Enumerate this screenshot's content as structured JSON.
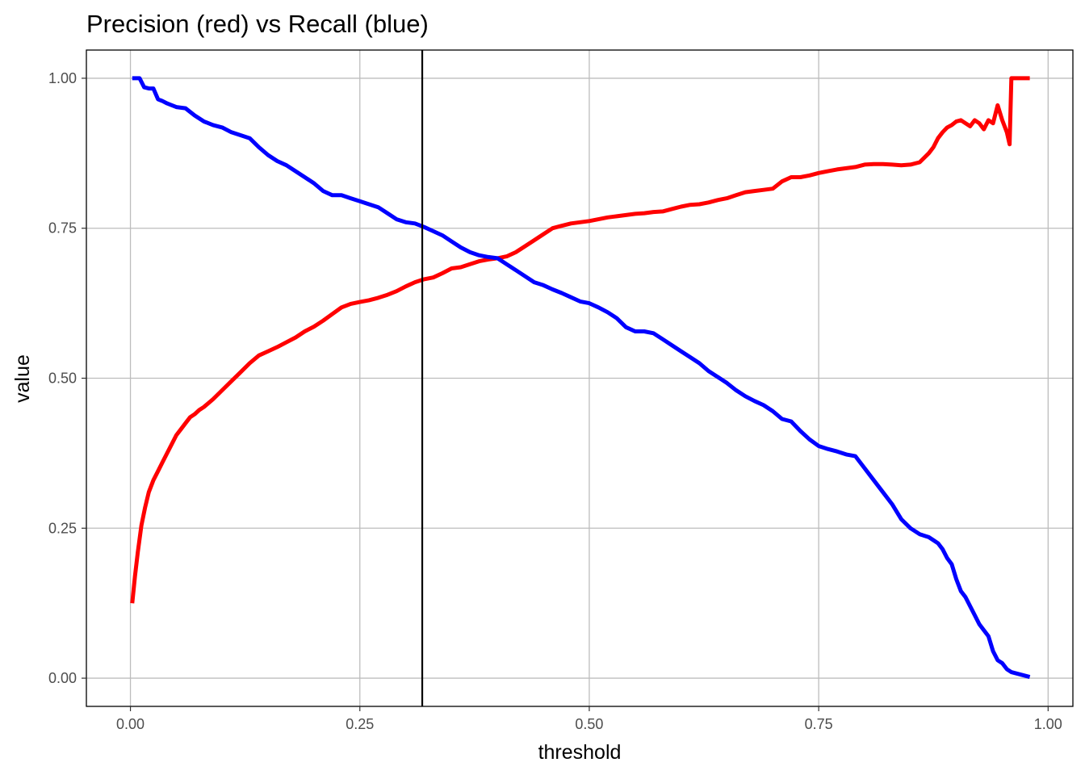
{
  "chart_data": {
    "type": "line",
    "title": "Precision (red) vs Recall (blue)",
    "xlabel": "threshold",
    "ylabel": "value",
    "xlim": [
      -0.048,
      1.027
    ],
    "ylim": [
      -0.047,
      1.047
    ],
    "x_ticks": [
      0.0,
      0.25,
      0.5,
      0.75,
      1.0
    ],
    "x_tick_labels": [
      "0.00",
      "0.25",
      "0.50",
      "0.75",
      "1.00"
    ],
    "y_ticks": [
      0.0,
      0.25,
      0.5,
      0.75,
      1.0
    ],
    "y_tick_labels": [
      "0.00",
      "0.25",
      "0.50",
      "0.75",
      "1.00"
    ],
    "grid": true,
    "legend": "none",
    "vline": {
      "x": 0.318,
      "color": "#000000"
    },
    "series": [
      {
        "color": "#ff0000",
        "x": [
          0.002,
          0.005,
          0.008,
          0.012,
          0.016,
          0.02,
          0.025,
          0.03,
          0.035,
          0.04,
          0.045,
          0.05,
          0.055,
          0.06,
          0.065,
          0.07,
          0.075,
          0.08,
          0.09,
          0.1,
          0.11,
          0.12,
          0.13,
          0.14,
          0.15,
          0.16,
          0.17,
          0.18,
          0.19,
          0.2,
          0.21,
          0.22,
          0.23,
          0.24,
          0.25,
          0.26,
          0.27,
          0.28,
          0.29,
          0.3,
          0.31,
          0.32,
          0.33,
          0.34,
          0.35,
          0.36,
          0.37,
          0.38,
          0.39,
          0.4,
          0.41,
          0.42,
          0.43,
          0.44,
          0.45,
          0.46,
          0.47,
          0.48,
          0.49,
          0.5,
          0.51,
          0.52,
          0.53,
          0.54,
          0.55,
          0.56,
          0.57,
          0.58,
          0.59,
          0.6,
          0.61,
          0.62,
          0.63,
          0.64,
          0.65,
          0.66,
          0.67,
          0.68,
          0.69,
          0.7,
          0.71,
          0.72,
          0.73,
          0.74,
          0.75,
          0.76,
          0.77,
          0.78,
          0.79,
          0.8,
          0.81,
          0.82,
          0.83,
          0.84,
          0.85,
          0.86,
          0.87,
          0.875,
          0.88,
          0.885,
          0.89,
          0.895,
          0.9,
          0.905,
          0.91,
          0.915,
          0.92,
          0.925,
          0.93,
          0.935,
          0.94,
          0.945,
          0.95,
          0.955,
          0.958,
          0.96,
          0.965,
          0.97,
          0.975,
          0.98
        ],
        "values": [
          0.125,
          0.17,
          0.21,
          0.255,
          0.285,
          0.31,
          0.33,
          0.345,
          0.36,
          0.375,
          0.39,
          0.405,
          0.415,
          0.425,
          0.435,
          0.44,
          0.447,
          0.452,
          0.465,
          0.48,
          0.495,
          0.51,
          0.525,
          0.538,
          0.545,
          0.552,
          0.56,
          0.568,
          0.578,
          0.586,
          0.596,
          0.607,
          0.618,
          0.624,
          0.627,
          0.63,
          0.634,
          0.639,
          0.645,
          0.653,
          0.66,
          0.665,
          0.668,
          0.675,
          0.683,
          0.685,
          0.69,
          0.695,
          0.698,
          0.7,
          0.703,
          0.71,
          0.72,
          0.73,
          0.74,
          0.75,
          0.754,
          0.758,
          0.76,
          0.762,
          0.765,
          0.768,
          0.77,
          0.772,
          0.774,
          0.775,
          0.777,
          0.778,
          0.782,
          0.786,
          0.789,
          0.79,
          0.793,
          0.797,
          0.8,
          0.805,
          0.81,
          0.812,
          0.814,
          0.816,
          0.828,
          0.835,
          0.835,
          0.838,
          0.842,
          0.845,
          0.848,
          0.85,
          0.852,
          0.856,
          0.857,
          0.857,
          0.856,
          0.855,
          0.856,
          0.86,
          0.875,
          0.885,
          0.9,
          0.91,
          0.918,
          0.922,
          0.928,
          0.93,
          0.925,
          0.92,
          0.93,
          0.925,
          0.915,
          0.93,
          0.925,
          0.955,
          0.93,
          0.91,
          0.89,
          1.0,
          1.0,
          1.0,
          1.0,
          1.0
        ]
      },
      {
        "color": "#0000ff",
        "x": [
          0.002,
          0.01,
          0.015,
          0.02,
          0.025,
          0.03,
          0.035,
          0.04,
          0.05,
          0.06,
          0.07,
          0.08,
          0.09,
          0.1,
          0.11,
          0.12,
          0.13,
          0.14,
          0.15,
          0.16,
          0.17,
          0.18,
          0.19,
          0.2,
          0.21,
          0.22,
          0.23,
          0.24,
          0.25,
          0.26,
          0.27,
          0.28,
          0.29,
          0.3,
          0.31,
          0.32,
          0.33,
          0.34,
          0.35,
          0.36,
          0.37,
          0.38,
          0.39,
          0.4,
          0.41,
          0.42,
          0.43,
          0.44,
          0.45,
          0.46,
          0.47,
          0.48,
          0.49,
          0.5,
          0.51,
          0.52,
          0.53,
          0.54,
          0.55,
          0.56,
          0.57,
          0.58,
          0.59,
          0.6,
          0.61,
          0.62,
          0.63,
          0.64,
          0.65,
          0.66,
          0.67,
          0.68,
          0.69,
          0.7,
          0.71,
          0.72,
          0.73,
          0.74,
          0.75,
          0.76,
          0.77,
          0.78,
          0.79,
          0.8,
          0.81,
          0.82,
          0.83,
          0.84,
          0.85,
          0.86,
          0.87,
          0.875,
          0.88,
          0.885,
          0.89,
          0.895,
          0.9,
          0.905,
          0.91,
          0.915,
          0.92,
          0.925,
          0.93,
          0.935,
          0.94,
          0.945,
          0.95,
          0.955,
          0.96,
          0.965,
          0.97,
          0.975,
          0.98
        ],
        "values": [
          1.0,
          1.0,
          0.985,
          0.983,
          0.983,
          0.965,
          0.962,
          0.958,
          0.952,
          0.95,
          0.938,
          0.928,
          0.922,
          0.918,
          0.91,
          0.905,
          0.9,
          0.885,
          0.872,
          0.862,
          0.855,
          0.845,
          0.835,
          0.825,
          0.812,
          0.805,
          0.805,
          0.8,
          0.795,
          0.79,
          0.785,
          0.775,
          0.765,
          0.76,
          0.758,
          0.752,
          0.745,
          0.738,
          0.728,
          0.718,
          0.71,
          0.705,
          0.702,
          0.7,
          0.69,
          0.68,
          0.67,
          0.66,
          0.655,
          0.648,
          0.642,
          0.635,
          0.628,
          0.625,
          0.618,
          0.61,
          0.6,
          0.585,
          0.578,
          0.578,
          0.575,
          0.565,
          0.555,
          0.545,
          0.535,
          0.525,
          0.512,
          0.502,
          0.492,
          0.48,
          0.47,
          0.462,
          0.455,
          0.445,
          0.432,
          0.428,
          0.412,
          0.398,
          0.387,
          0.382,
          0.378,
          0.373,
          0.37,
          0.35,
          0.33,
          0.31,
          0.29,
          0.265,
          0.25,
          0.24,
          0.235,
          0.23,
          0.225,
          0.215,
          0.2,
          0.19,
          0.165,
          0.145,
          0.135,
          0.12,
          0.105,
          0.09,
          0.08,
          0.07,
          0.045,
          0.03,
          0.025,
          0.015,
          0.01,
          0.008,
          0.006,
          0.004,
          0.002
        ]
      }
    ]
  }
}
